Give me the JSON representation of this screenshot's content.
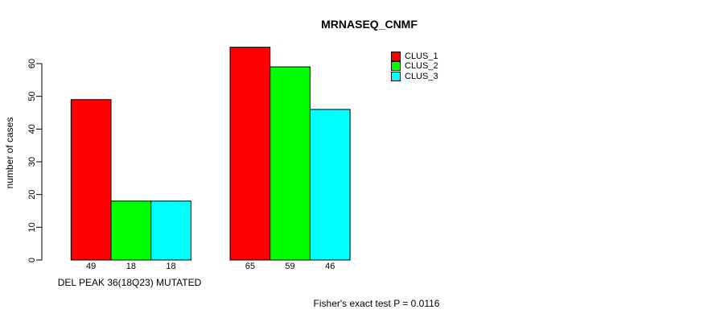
{
  "chart_data": {
    "type": "bar",
    "title": "MRNASEQ_CNMF",
    "ylabel": "number of cases",
    "xlabel": "DEL PEAK 36(18Q23) MUTATED",
    "annotation": "Fisher's exact test P = 0.0116",
    "categories": [
      "DEL PEAK 36(18Q23) MUTATED",
      ""
    ],
    "series": [
      {
        "name": "CLUS_1",
        "color": "#FF0000",
        "values": [
          49,
          65
        ]
      },
      {
        "name": "CLUS_2",
        "color": "#00FF00",
        "values": [
          18,
          59
        ]
      },
      {
        "name": "CLUS_3",
        "color": "#00FFFF",
        "values": [
          18,
          46
        ]
      }
    ],
    "yticks": [
      0,
      10,
      20,
      30,
      40,
      50,
      60
    ],
    "ylim": [
      0,
      65
    ],
    "grid": false,
    "legend_position": "top-right",
    "bar_value_labels": [
      [
        49,
        18,
        18
      ],
      [
        65,
        59,
        46
      ]
    ],
    "background": "#FFFFFF",
    "text_color": "#000000"
  }
}
